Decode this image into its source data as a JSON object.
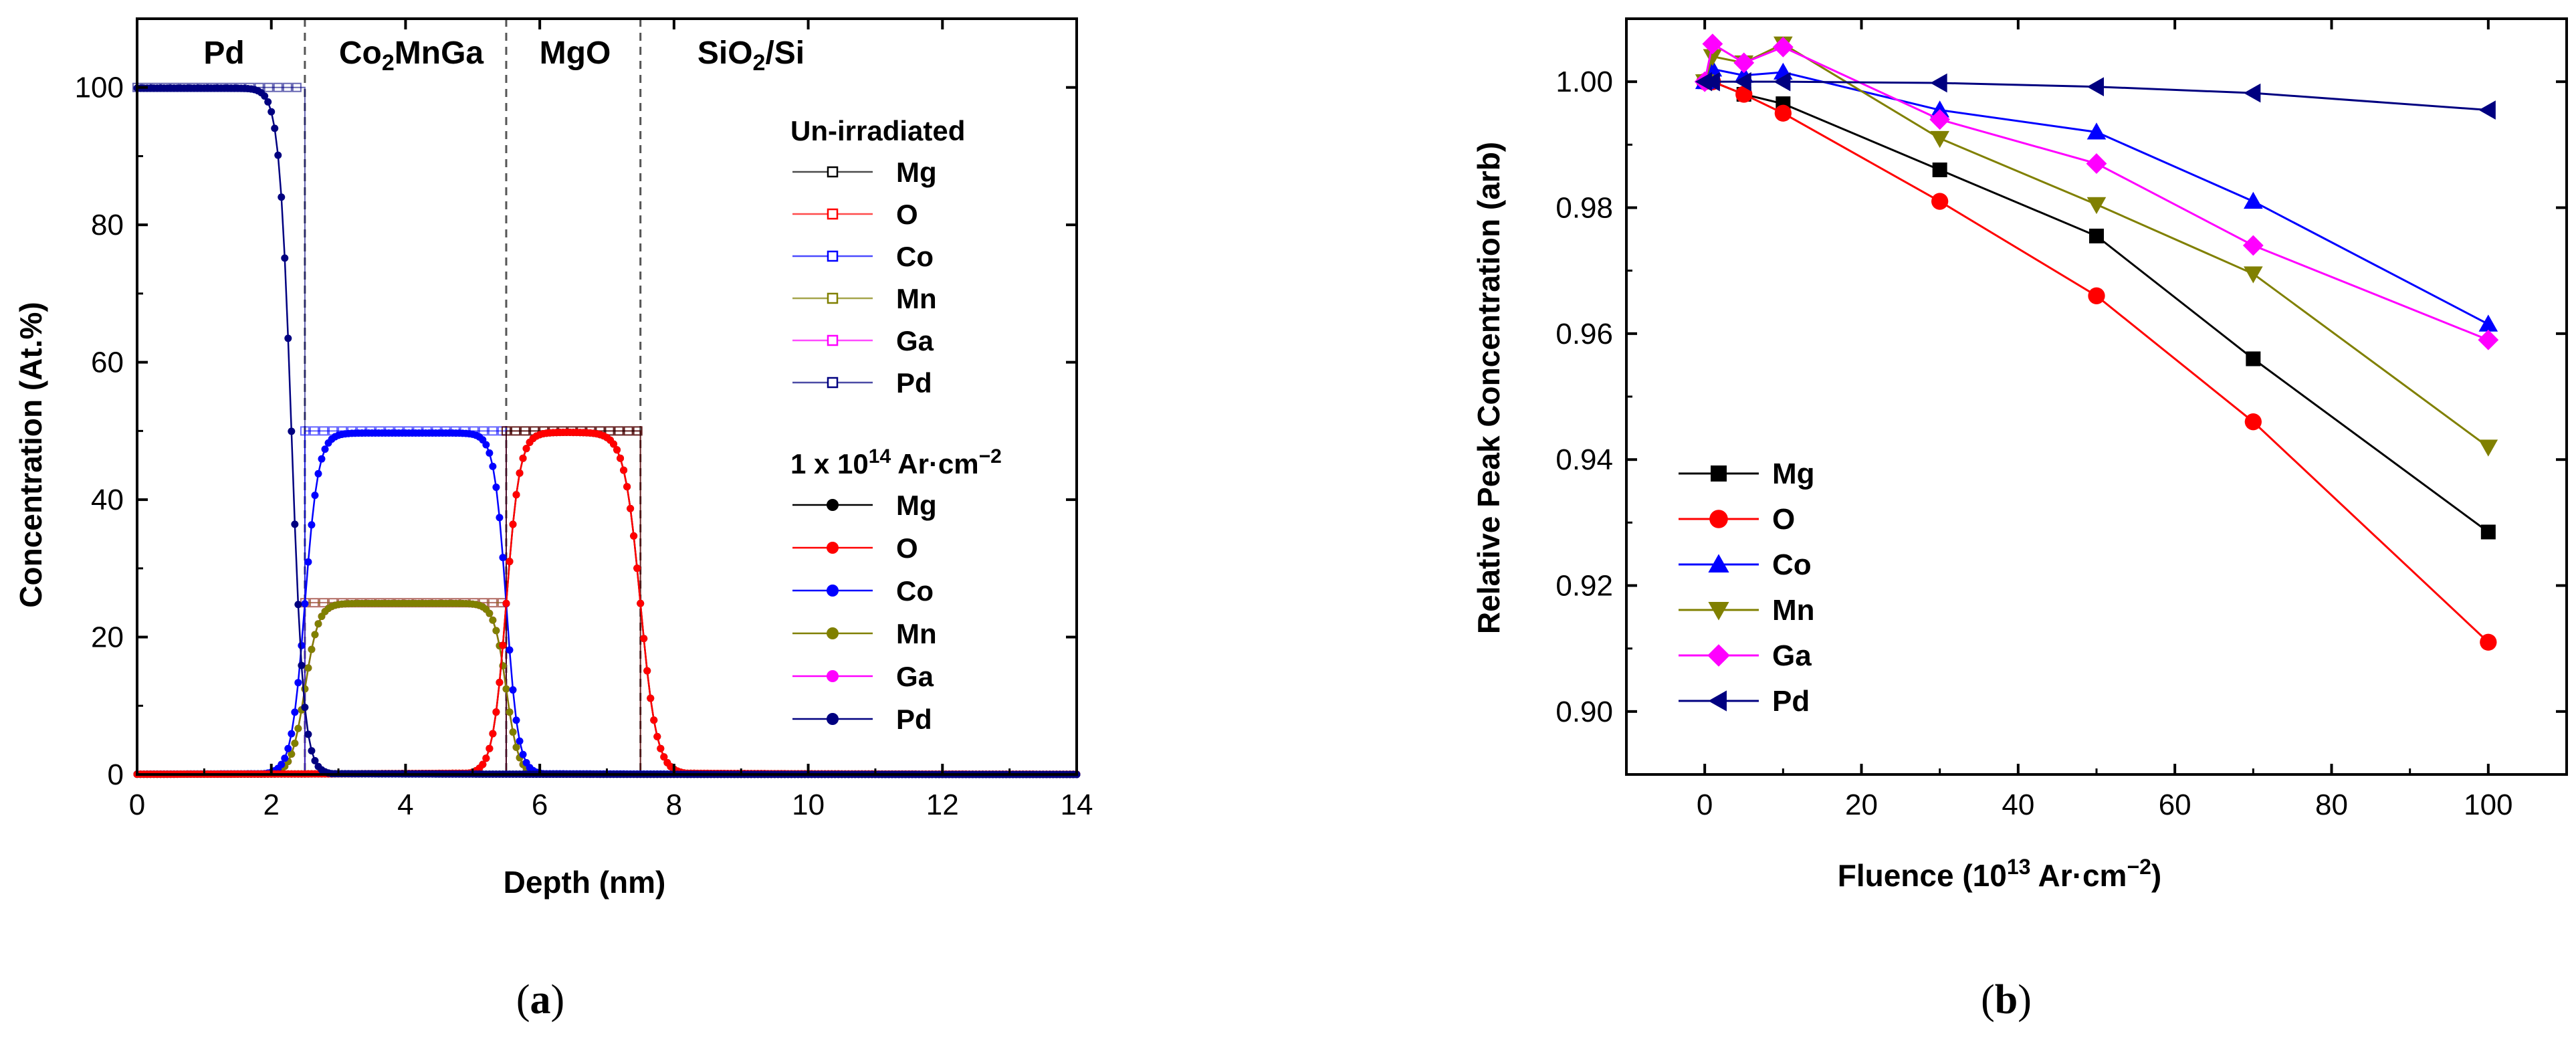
{
  "chart_data": [
    {
      "panel": "(a)",
      "type": "line",
      "xlabel": "Depth (nm)",
      "ylabel": "Concentration (At.%)",
      "xlim": [
        0,
        14
      ],
      "ylim": [
        0,
        110
      ],
      "xticks": [
        0,
        2,
        4,
        6,
        8,
        10,
        12,
        14
      ],
      "yticks": [
        0,
        20,
        40,
        60,
        80,
        100
      ],
      "layer_labels": [
        "Pd",
        "Co2MnGa",
        "MgO",
        "SiO2/Si"
      ],
      "layer_boundaries": [
        2.5,
        5.5,
        7.5
      ],
      "legend": {
        "position": "right",
        "group1_title": "Un-irradiated",
        "group2_title_prefix": "1 x 10",
        "group2_title_exp": "14",
        "group2_title_suffix": " Ar·cm",
        "group2_title_sup": "−2",
        "entries": [
          "Mg",
          "O",
          "Co",
          "Mn",
          "Ga",
          "Pd"
        ]
      },
      "colors": {
        "Mg": "#000000",
        "O": "#ff0000",
        "Co": "#0000ff",
        "Mn": "#808000",
        "Ga": "#ff00ff",
        "Pd": "#000080"
      },
      "unirradiated": [
        {
          "name": "Mg",
          "points": [
            [
              0,
              0
            ],
            [
              5.5,
              0
            ],
            [
              5.5,
              50
            ],
            [
              7.5,
              50
            ],
            [
              7.5,
              0
            ],
            [
              14,
              0
            ]
          ]
        },
        {
          "name": "O",
          "points": [
            [
              0,
              0
            ],
            [
              5.5,
              0
            ],
            [
              5.5,
              50
            ],
            [
              7.5,
              50
            ],
            [
              7.5,
              0
            ],
            [
              14,
              0
            ]
          ]
        },
        {
          "name": "Co",
          "points": [
            [
              0,
              0
            ],
            [
              2.5,
              0
            ],
            [
              2.5,
              50
            ],
            [
              5.5,
              50
            ],
            [
              5.5,
              0
            ],
            [
              14,
              0
            ]
          ]
        },
        {
          "name": "Mn",
          "points": [
            [
              0,
              0
            ],
            [
              2.5,
              0
            ],
            [
              2.5,
              25
            ],
            [
              5.5,
              25
            ],
            [
              5.5,
              0
            ],
            [
              14,
              0
            ]
          ]
        },
        {
          "name": "Ga",
          "points": [
            [
              0,
              0
            ],
            [
              2.5,
              0
            ],
            [
              2.5,
              25
            ],
            [
              5.5,
              25
            ],
            [
              5.5,
              0
            ],
            [
              14,
              0
            ]
          ]
        },
        {
          "name": "Pd",
          "points": [
            [
              0,
              100
            ],
            [
              2.5,
              100
            ],
            [
              2.5,
              0
            ],
            [
              14,
              0
            ]
          ]
        }
      ],
      "irradiated": [
        {
          "name": "Mg",
          "center": 6.5,
          "half_width": 1.0,
          "left_width": 0.1,
          "right_width": 0.12,
          "amplitude": 49.8,
          "baseline": 0.3
        },
        {
          "name": "O",
          "center": 6.5,
          "half_width": 1.0,
          "left_width": 0.1,
          "right_width": 0.12,
          "amplitude": 49.8,
          "baseline": 0.3
        },
        {
          "name": "Co",
          "center": 4.0,
          "half_width": 1.5,
          "left_width": 0.1,
          "right_width": 0.09,
          "amplitude": 49.7,
          "baseline": 0.2
        },
        {
          "name": "Mn",
          "center": 4.0,
          "half_width": 1.5,
          "left_width": 0.1,
          "right_width": 0.09,
          "amplitude": 24.9,
          "baseline": 0.1
        },
        {
          "name": "Ga",
          "center": 4.0,
          "half_width": 1.5,
          "left_width": 0.1,
          "right_width": 0.09,
          "amplitude": 24.9,
          "baseline": 0.1
        },
        {
          "name": "Pd",
          "center": 0.0,
          "half_width": 2.3,
          "left_width": 0.1,
          "right_width": 0.09,
          "amplitude": 99.9,
          "baseline": 0.3
        }
      ]
    },
    {
      "panel": "(b)",
      "type": "line",
      "xlabel_prefix": "Fluence (10",
      "xlabel_exp": "13",
      "xlabel_mid": " Ar·cm",
      "xlabel_sup": "−2",
      "xlabel_suffix": ")",
      "ylabel": "Relative Peak Concentration (arb)",
      "xlim": [
        -10,
        110
      ],
      "ylim": [
        0.89,
        1.01
      ],
      "xticks": [
        0,
        20,
        40,
        60,
        80,
        100
      ],
      "yticks": [
        0.9,
        0.92,
        0.94,
        0.96,
        0.98,
        1.0
      ],
      "legend_position": "bottom-left",
      "x": [
        0,
        1,
        5,
        10,
        30,
        50,
        70,
        100
      ],
      "series": [
        {
          "name": "Mg",
          "color": "#000000",
          "marker": "square",
          "values": [
            1.0,
            1.0,
            0.998,
            0.9965,
            0.986,
            0.9755,
            0.956,
            0.9285
          ]
        },
        {
          "name": "O",
          "color": "#ff0000",
          "marker": "circle",
          "values": [
            1.0,
            1.0,
            0.998,
            0.995,
            0.981,
            0.966,
            0.946,
            0.911
          ]
        },
        {
          "name": "Co",
          "color": "#0000ff",
          "marker": "triangle-up",
          "values": [
            1.0,
            1.002,
            1.001,
            1.0015,
            0.9955,
            0.992,
            0.981,
            0.9615
          ]
        },
        {
          "name": "Mn",
          "color": "#808000",
          "marker": "triangle-down",
          "values": [
            1.0,
            1.004,
            1.003,
            1.006,
            0.991,
            0.9805,
            0.9695,
            0.942
          ]
        },
        {
          "name": "Ga",
          "color": "#ff00ff",
          "marker": "diamond",
          "values": [
            1.0,
            1.006,
            1.003,
            1.0055,
            0.994,
            0.987,
            0.974,
            0.959
          ]
        },
        {
          "name": "Pd",
          "color": "#000080",
          "marker": "triangle-left",
          "values": [
            1.0,
            1.0,
            1.0,
            1.0,
            0.9998,
            0.9992,
            0.9982,
            0.9955
          ]
        }
      ]
    }
  ],
  "captions": {
    "a": "(a)",
    "b": "(b)"
  }
}
